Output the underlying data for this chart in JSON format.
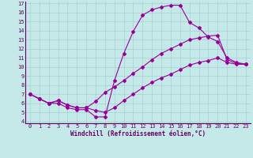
{
  "xlabel": "Windchill (Refroidissement éolien,°C)",
  "bg_color": "#c5e8e8",
  "line_color": "#990099",
  "grid_color": "#a8d0d0",
  "text_color": "#660066",
  "spine_color": "#660066",
  "xlim": [
    -0.5,
    23.5
  ],
  "ylim": [
    3.8,
    17.2
  ],
  "xticks": [
    0,
    1,
    2,
    3,
    4,
    5,
    6,
    7,
    8,
    9,
    10,
    11,
    12,
    13,
    14,
    15,
    16,
    17,
    18,
    19,
    20,
    21,
    22,
    23
  ],
  "yticks": [
    4,
    5,
    6,
    7,
    8,
    9,
    10,
    11,
    12,
    13,
    14,
    15,
    16,
    17
  ],
  "curve1_x": [
    0,
    1,
    2,
    3,
    4,
    5,
    6,
    7,
    8,
    9,
    10,
    11,
    12,
    13,
    14,
    15,
    16,
    17,
    18,
    19,
    20,
    21,
    22,
    23
  ],
  "curve1_y": [
    7.0,
    6.5,
    6.0,
    6.0,
    5.5,
    5.3,
    5.3,
    4.5,
    4.5,
    8.5,
    11.5,
    13.9,
    15.7,
    16.3,
    16.6,
    16.8,
    16.8,
    14.9,
    14.3,
    13.3,
    12.8,
    11.0,
    10.5,
    10.3
  ],
  "curve2_x": [
    0,
    1,
    2,
    3,
    4,
    5,
    6,
    7,
    8,
    9,
    10,
    11,
    12,
    13,
    14,
    15,
    16,
    17,
    18,
    19,
    20,
    21,
    22,
    23
  ],
  "curve2_y": [
    7.0,
    6.5,
    6.0,
    6.3,
    5.8,
    5.5,
    5.5,
    6.2,
    7.2,
    7.8,
    8.5,
    9.3,
    10.0,
    10.8,
    11.5,
    12.0,
    12.5,
    13.0,
    13.2,
    13.4,
    13.5,
    10.8,
    10.4,
    10.3
  ],
  "curve3_x": [
    0,
    1,
    2,
    3,
    4,
    5,
    6,
    7,
    8,
    9,
    10,
    11,
    12,
    13,
    14,
    15,
    16,
    17,
    18,
    19,
    20,
    21,
    22,
    23
  ],
  "curve3_y": [
    7.0,
    6.5,
    6.0,
    6.3,
    5.8,
    5.5,
    5.5,
    5.2,
    5.0,
    5.5,
    6.3,
    7.0,
    7.7,
    8.3,
    8.8,
    9.2,
    9.7,
    10.2,
    10.5,
    10.7,
    11.0,
    10.5,
    10.3,
    10.3
  ],
  "marker_size": 2.0,
  "line_width": 0.8,
  "tick_fontsize": 5.0,
  "xlabel_fontsize": 5.5
}
